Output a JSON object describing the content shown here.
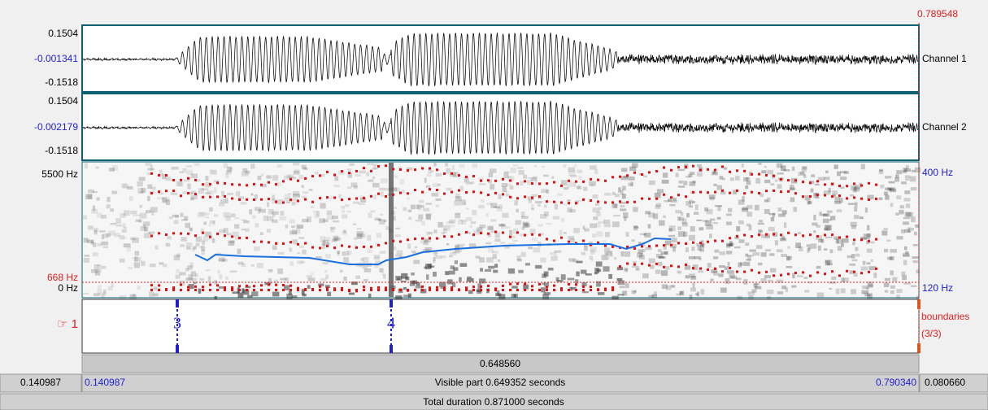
{
  "cursor_time": "0.789548",
  "channels": [
    {
      "max": "0.1504",
      "mid": "-0.001341",
      "min": "-0.1518",
      "name": "Channel 1"
    },
    {
      "max": "0.1504",
      "mid": "-0.002179",
      "min": "-0.1518",
      "name": "Channel 2"
    }
  ],
  "spectrogram": {
    "top": "5500 Hz",
    "formant_line": "668 Hz",
    "bottom": "0 Hz",
    "pitch_top": "400 Hz",
    "pitch_bottom": "120 Hz"
  },
  "tier": {
    "number": "☞ 1",
    "name": "boundaries",
    "count": "(3/3)",
    "boundaries": [
      "3",
      "4"
    ]
  },
  "selection_duration": "0.648560",
  "visible": {
    "left_outer": "0.140987",
    "start": "0.140987",
    "text": "Visible part 0.649352 seconds",
    "end": "0.790340",
    "right_outer": "0.080660"
  },
  "total": "Total duration 0.871000 seconds"
}
